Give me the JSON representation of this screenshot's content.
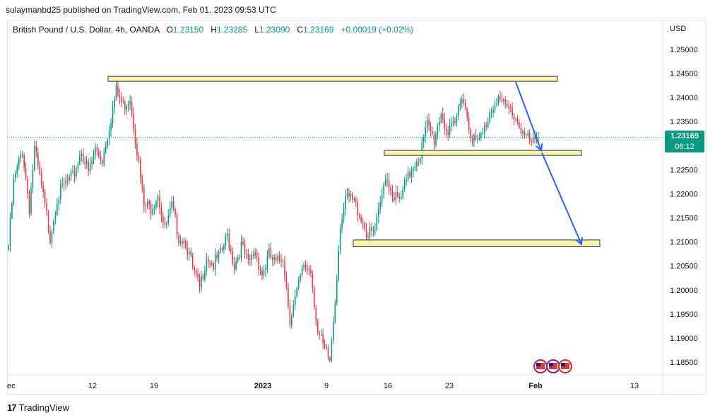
{
  "header": {
    "published": "sulaymanbd25 published on TradingView.com, Feb 01, 2023 09:53 UTC"
  },
  "legend": {
    "symbol": "British Pound / U.S. Dollar, 4h, OANDA",
    "o_label": "O",
    "o": "1.23150",
    "h_label": "H",
    "h": "1.23285",
    "l_label": "L",
    "l": "1.23090",
    "c_label": "C",
    "c": "1.23169",
    "change": "+0.00019 (+0.02%)"
  },
  "price_badge": {
    "price": "1.23169",
    "countdown": "06:12",
    "color": "#089981"
  },
  "footer": {
    "brand": "TradingView",
    "logo": "tv-logo-icon"
  },
  "colors": {
    "up": "#089981",
    "down": "#f23645",
    "zone_fill": "#fff59d",
    "zone_border": "#1e3a8a",
    "arrow": "#2962ff"
  },
  "chart_data": {
    "type": "candlestick",
    "currency": "USD",
    "y_ticks": [
      "1.25000",
      "1.24500",
      "1.24000",
      "1.23500",
      "1.23000",
      "1.22500",
      "1.22000",
      "1.21500",
      "1.21000",
      "1.20500",
      "1.20000",
      "1.19500",
      "1.19000",
      "1.18500"
    ],
    "ylim": [
      1.182,
      1.253
    ],
    "x_ticks": [
      "ec",
      "12",
      "19",
      "2023",
      "9",
      "16",
      "23",
      "Feb",
      "13"
    ],
    "last_price": 1.23169,
    "anchors": [
      [
        0,
        1.21
      ],
      [
        3,
        1.223
      ],
      [
        8,
        1.23
      ],
      [
        12,
        1.218
      ],
      [
        15,
        1.23
      ],
      [
        20,
        1.22
      ],
      [
        24,
        1.212
      ],
      [
        28,
        1.22
      ],
      [
        33,
        1.223
      ],
      [
        37,
        1.224
      ],
      [
        42,
        1.23
      ],
      [
        46,
        1.225
      ],
      [
        50,
        1.23
      ],
      [
        54,
        1.228
      ],
      [
        58,
        1.235
      ],
      [
        62,
        1.242
      ],
      [
        66,
        1.239
      ],
      [
        70,
        1.241
      ],
      [
        74,
        1.23
      ],
      [
        78,
        1.218
      ],
      [
        82,
        1.218
      ],
      [
        86,
        1.221
      ],
      [
        90,
        1.213
      ],
      [
        94,
        1.218
      ],
      [
        98,
        1.212
      ],
      [
        102,
        1.211
      ],
      [
        106,
        1.205
      ],
      [
        110,
        1.201
      ],
      [
        114,
        1.208
      ],
      [
        118,
        1.206
      ],
      [
        122,
        1.208
      ],
      [
        126,
        1.212
      ],
      [
        130,
        1.206
      ],
      [
        134,
        1.21
      ],
      [
        138,
        1.206
      ],
      [
        142,
        1.209
      ],
      [
        146,
        1.204
      ],
      [
        150,
        1.208
      ],
      [
        154,
        1.206
      ],
      [
        158,
        1.208
      ],
      [
        162,
        1.195
      ],
      [
        166,
        1.2
      ],
      [
        170,
        1.206
      ],
      [
        174,
        1.205
      ],
      [
        178,
        1.192
      ],
      [
        182,
        1.188
      ],
      [
        185,
        1.186
      ],
      [
        188,
        1.199
      ],
      [
        191,
        1.215
      ],
      [
        195,
        1.22
      ],
      [
        199,
        1.219
      ],
      [
        203,
        1.216
      ],
      [
        207,
        1.212
      ],
      [
        211,
        1.213
      ],
      [
        214,
        1.218
      ],
      [
        217,
        1.225
      ],
      [
        221,
        1.221
      ],
      [
        225,
        1.219
      ],
      [
        229,
        1.223
      ],
      [
        233,
        1.227
      ],
      [
        237,
        1.229
      ],
      [
        241,
        1.235
      ],
      [
        245,
        1.232
      ],
      [
        249,
        1.238
      ],
      [
        253,
        1.233
      ],
      [
        257,
        1.235
      ],
      [
        261,
        1.242
      ],
      [
        265,
        1.235
      ],
      [
        269,
        1.231
      ],
      [
        273,
        1.233
      ],
      [
        277,
        1.238
      ],
      [
        281,
        1.241
      ],
      [
        285,
        1.239
      ],
      [
        289,
        1.238
      ],
      [
        293,
        1.236
      ],
      [
        297,
        1.233
      ],
      [
        301,
        1.231
      ],
      [
        305,
        1.2317
      ]
    ],
    "annotations": [
      {
        "type": "zone",
        "x_from": "Dec 13",
        "x_to": "Feb 02",
        "y_from": 1.2437,
        "y_to": 1.2444
      },
      {
        "type": "zone",
        "x_from": "Jan 15",
        "x_to": "Feb 04",
        "y_from": 1.2283,
        "y_to": 1.229
      },
      {
        "type": "zone",
        "x_from": "Jan 11",
        "x_to": "Feb 06",
        "y_from": 1.209,
        "y_to": 1.2104
      },
      {
        "type": "arrow",
        "from": [
          1.2432
        ],
        "to": [
          1.229
        ]
      },
      {
        "type": "arrow",
        "from": [
          1.2285
        ],
        "to": [
          1.2095
        ]
      }
    ]
  }
}
